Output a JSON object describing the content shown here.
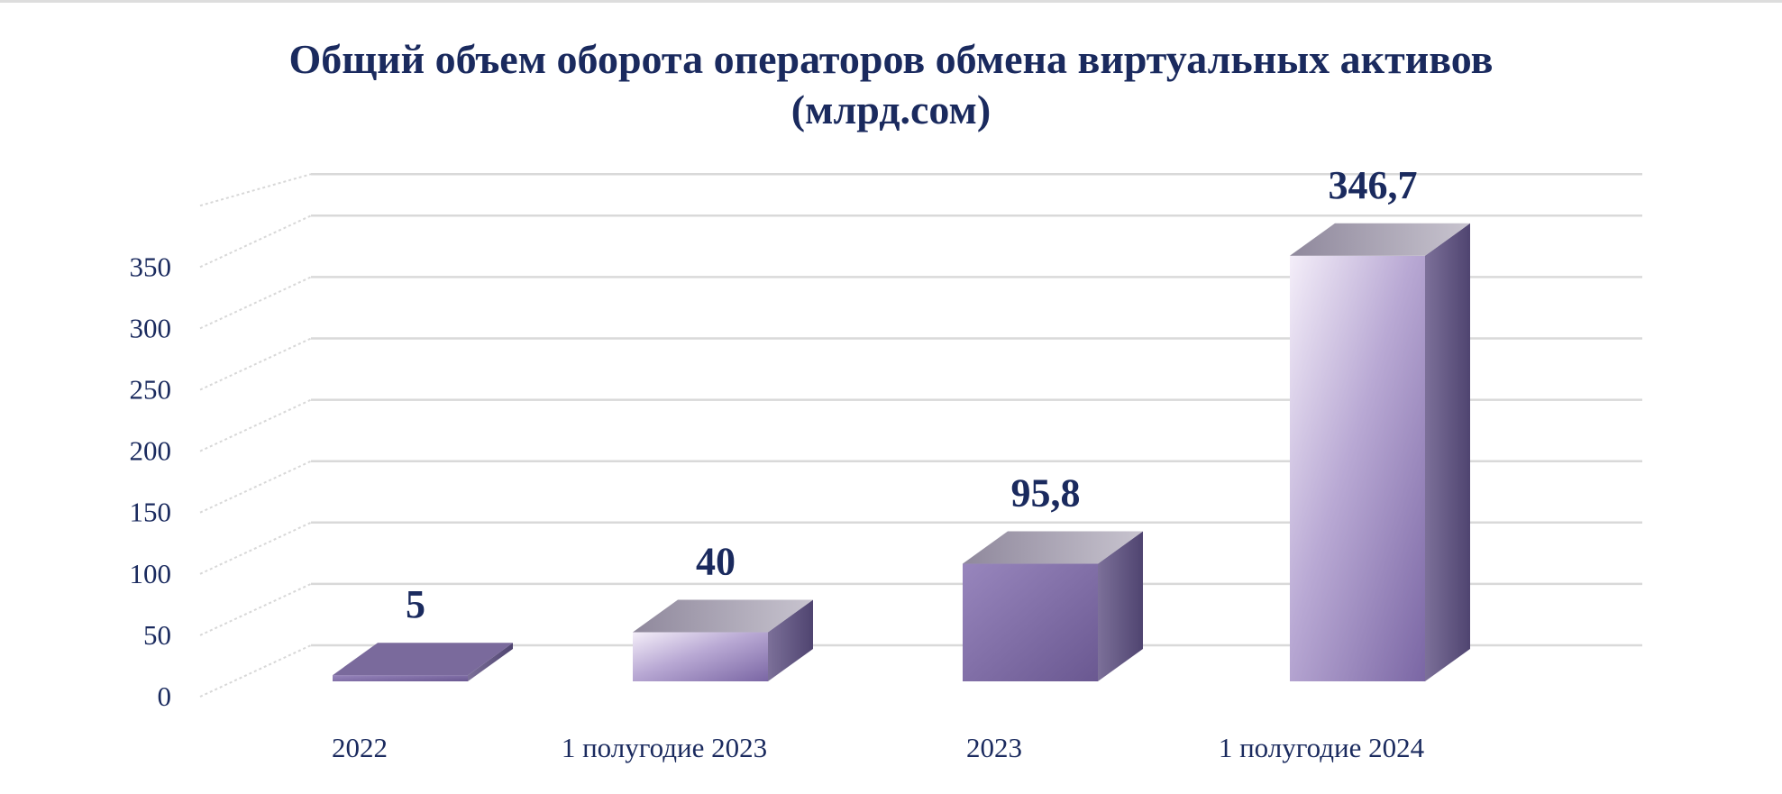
{
  "chart_data": {
    "type": "bar",
    "title_line1": "Общий объем оборота операторов обмена виртуальных активов",
    "title_line2": "(млрд.сом)",
    "categories": [
      "2022",
      "1 полугодие 2023",
      "2023",
      "1 полугодие 2024"
    ],
    "values": [
      5,
      40,
      95.8,
      346.7
    ],
    "data_labels": [
      "5",
      "40",
      "95,8",
      "346,7"
    ],
    "y_ticks": [
      "0",
      "50",
      "100",
      "150",
      "200",
      "250",
      "300",
      "350"
    ],
    "ylim": [
      0,
      400
    ],
    "grid": true,
    "legend": false,
    "colors": {
      "text": "#1a2a5e",
      "bar_light": "#efe8f6",
      "bar_mid": "#a998c8",
      "bar_dark": "#6c5a92",
      "top_face": "#a8a3b0",
      "side_face": "#5b4f7a",
      "grid": "#d6d6d6"
    }
  }
}
